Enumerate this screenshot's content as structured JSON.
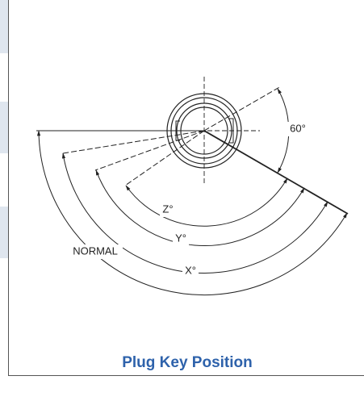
{
  "diagram": {
    "angle_label": "60°",
    "z_label": "Z°",
    "y_label": "Y°",
    "normal_label": "NORMAL",
    "x_label": "X°"
  },
  "caption": "Plug Key Position"
}
